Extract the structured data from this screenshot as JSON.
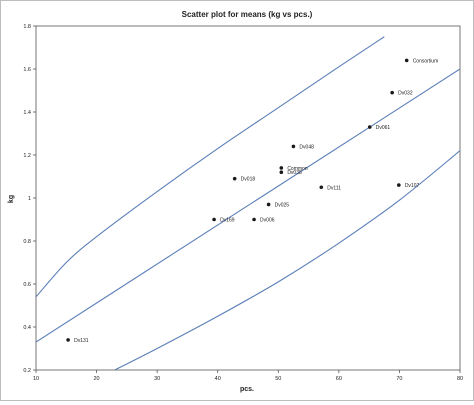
{
  "chart_data": {
    "type": "scatter",
    "title": "Scatter plot for means (kg vs pcs.)",
    "xlabel": "pcs.",
    "ylabel": "kg",
    "xlim": [
      10,
      80
    ],
    "ylim": [
      0.2,
      1.8
    ],
    "xticks": [
      10,
      20,
      30,
      40,
      50,
      60,
      70,
      80
    ],
    "yticks": [
      0.2,
      0.4,
      0.6,
      0.8,
      1,
      1.2,
      1.4,
      1.6,
      1.8
    ],
    "xtick_labels": [
      "10",
      "20",
      "30",
      "40",
      "50",
      "60",
      "70",
      "80"
    ],
    "ytick_labels": [
      "0.2",
      "0.4",
      "0.6",
      "0.8",
      "1",
      "1.2",
      "1.4",
      "1.6",
      "1.8"
    ],
    "grid": false,
    "legend": "none",
    "points": [
      {
        "label": "Dv131",
        "x": 15.3,
        "y": 0.34
      },
      {
        "label": "Dv169",
        "x": 39.4,
        "y": 0.9
      },
      {
        "label": "Dv006",
        "x": 46.0,
        "y": 0.9
      },
      {
        "label": "Dv025",
        "x": 48.4,
        "y": 0.97
      },
      {
        "label": "Dv018",
        "x": 42.8,
        "y": 1.09
      },
      {
        "label": "Dv048",
        "x": 52.5,
        "y": 1.24
      },
      {
        "label": "Dv111",
        "x": 57.1,
        "y": 1.05
      },
      {
        "label": "Dv061",
        "x": 65.1,
        "y": 1.33
      },
      {
        "label": "Dv032",
        "x": 68.8,
        "y": 1.49
      },
      {
        "label": "Consortium",
        "x": 71.2,
        "y": 1.64
      },
      {
        "label": "Dv107",
        "x": 69.9,
        "y": 1.06
      },
      {
        "label": "Common",
        "x": 50.5,
        "y": 1.14
      },
      {
        "label": "Dv038",
        "x": 50.5,
        "y": 1.12
      }
    ],
    "lines": [
      {
        "x": [
          10,
          80
        ],
        "y": [
          0.33,
          1.6
        ]
      },
      {
        "x": [
          10,
          15,
          20,
          30,
          40,
          50,
          60,
          67.5
        ],
        "y": [
          0.54,
          0.7,
          0.82,
          1.03,
          1.23,
          1.42,
          1.61,
          1.75
        ]
      },
      {
        "x": [
          23,
          30,
          40,
          50,
          60,
          70,
          80
        ],
        "y": [
          0.2,
          0.3,
          0.45,
          0.61,
          0.79,
          0.99,
          1.22
        ]
      }
    ],
    "colors": {
      "line": "#5b7fb8",
      "point": "#1a1a1a",
      "axis": "#555555"
    }
  }
}
